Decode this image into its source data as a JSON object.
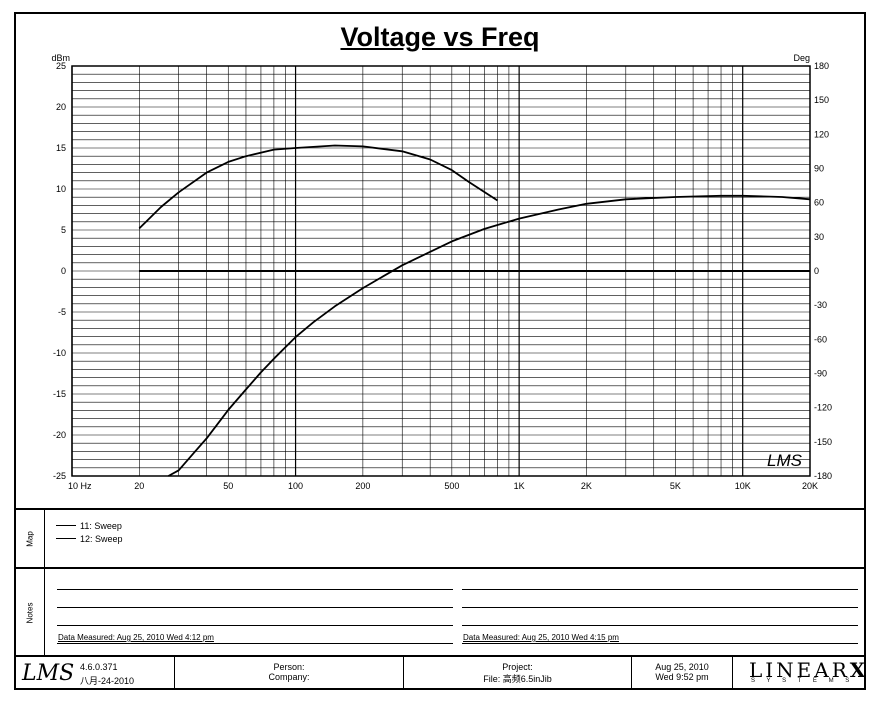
{
  "title": "Voltage vs Freq",
  "chart_data": {
    "type": "line",
    "title": "Voltage vs Freq",
    "xscale": "log",
    "xlim": [
      10,
      20000
    ],
    "x_ticks": [
      {
        "v": 10,
        "label": "10  Hz"
      },
      {
        "v": 20,
        "label": "20"
      },
      {
        "v": 50,
        "label": "50"
      },
      {
        "v": 100,
        "label": "100"
      },
      {
        "v": 200,
        "label": "200"
      },
      {
        "v": 500,
        "label": "500"
      },
      {
        "v": 1000,
        "label": "1K"
      },
      {
        "v": 2000,
        "label": "2K"
      },
      {
        "v": 5000,
        "label": "5K"
      },
      {
        "v": 10000,
        "label": "10K"
      },
      {
        "v": 20000,
        "label": "20K"
      }
    ],
    "ylabel": "dBm",
    "ylim": [
      -25,
      25
    ],
    "y_ticks": [
      -25,
      -20,
      -15,
      -10,
      -5,
      0,
      5,
      10,
      15,
      20,
      25
    ],
    "y2label": "Deg",
    "y2lim": [
      -180,
      180
    ],
    "y2_ticks": [
      -180,
      -150,
      -120,
      -90,
      -60,
      -30,
      0,
      30,
      60,
      90,
      120,
      150,
      180
    ],
    "grid": true,
    "series": [
      {
        "name": "11: Sweep",
        "axis": "left",
        "x": [
          20,
          25,
          30,
          40,
          50,
          60,
          80,
          100,
          150,
          200,
          300,
          400,
          500,
          600,
          800
        ],
        "y": [
          5.2,
          7.8,
          9.6,
          12.0,
          13.3,
          14.0,
          14.8,
          15.0,
          15.3,
          15.2,
          14.6,
          13.6,
          12.3,
          10.8,
          8.6
        ]
      },
      {
        "name": "12: Sweep",
        "axis": "right",
        "x": [
          27,
          30,
          35,
          40,
          50,
          60,
          70,
          80,
          100,
          120,
          150,
          200,
          300,
          500,
          700,
          1000,
          1500,
          2000,
          3000,
          5000,
          8000,
          10000,
          15000,
          20000
        ],
        "y": [
          -180,
          -175,
          -160,
          -147,
          -122,
          -104,
          -89,
          -77,
          -58,
          -45,
          -31,
          -15,
          5,
          26,
          37,
          46,
          54,
          59,
          63,
          65,
          66,
          66,
          65,
          63
        ]
      }
    ]
  },
  "map": {
    "label": "Map",
    "legend": [
      "11: Sweep",
      "12: Sweep"
    ]
  },
  "notes": {
    "label": "Notes",
    "measured_left": "Data Measured: Aug 25, 2010  Wed  4:12 pm",
    "measured_right": "Data Measured: Aug 25, 2010  Wed  4:15 pm"
  },
  "footer": {
    "logo": "LMS",
    "version": "4.6.0.371",
    "date": "八月-24-2010",
    "person": "Person:",
    "company": "Company:",
    "project": "Project:",
    "file": "File: 高频6.5inJib",
    "date_right": "Aug 25, 2010",
    "time_right": "Wed  9:52 pm",
    "brand": "LINEAR",
    "brand_x": "X",
    "brand_sub": "S Y S T E M S"
  },
  "watermark": "LMS"
}
